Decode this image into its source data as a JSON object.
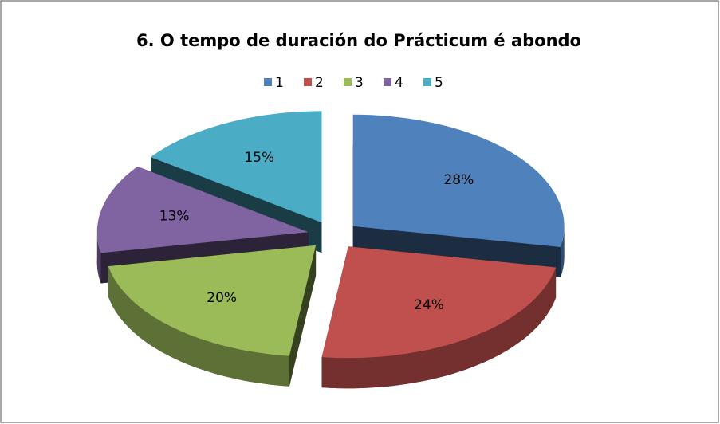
{
  "chart_data": {
    "type": "pie",
    "title": "6. O tempo de duración do Prácticum é abondo",
    "categories": [
      "1",
      "2",
      "3",
      "4",
      "5"
    ],
    "values": [
      28,
      24,
      20,
      13,
      15
    ],
    "value_labels": [
      "28%",
      "24%",
      "20%",
      "13%",
      "15%"
    ],
    "colors": [
      "#4f81bd",
      "#c0504d",
      "#9bbb59",
      "#8064a2",
      "#4bacc6"
    ],
    "legend": "top",
    "exploded": true,
    "three_d": true
  }
}
